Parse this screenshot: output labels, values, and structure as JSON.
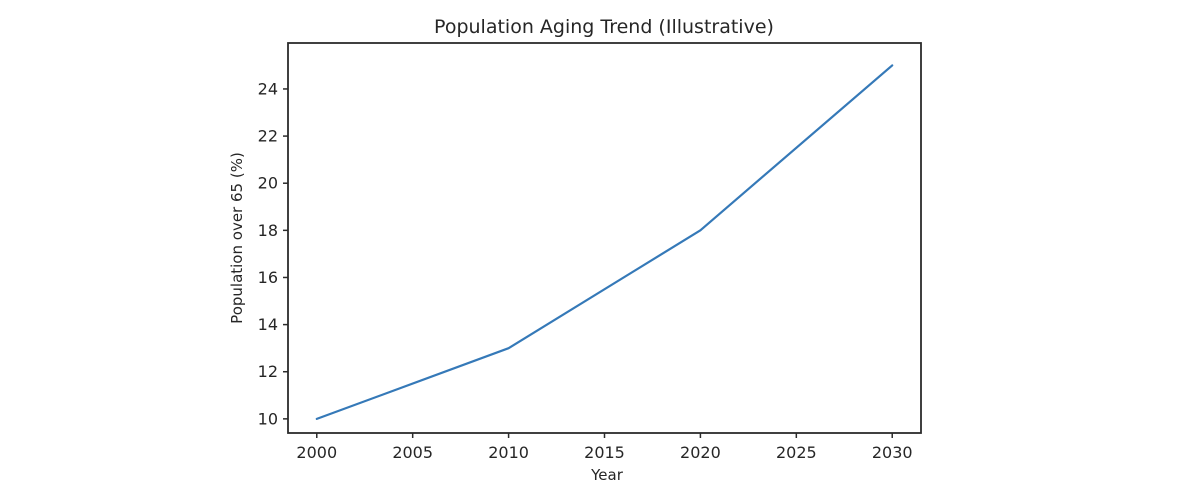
{
  "page": {
    "background": "#ffffff"
  },
  "chart_data": {
    "type": "line",
    "title": "Population Aging Trend (Illustrative)",
    "xlabel": "Year",
    "ylabel": "Population over 65 (%)",
    "x": [
      2000,
      2010,
      2020,
      2030
    ],
    "y": [
      10,
      13,
      18,
      25
    ],
    "xticks": [
      2000,
      2005,
      2010,
      2015,
      2020,
      2025,
      2030
    ],
    "yticks": [
      10,
      12,
      14,
      16,
      18,
      20,
      22,
      24
    ],
    "xlim": [
      1998.5,
      2031.5
    ],
    "ylim": [
      9.4,
      25.95
    ],
    "grid": false,
    "legend": "none",
    "line_color": "#3579b8",
    "axis_color": "#2b2b2b",
    "text_color": "#262626"
  }
}
